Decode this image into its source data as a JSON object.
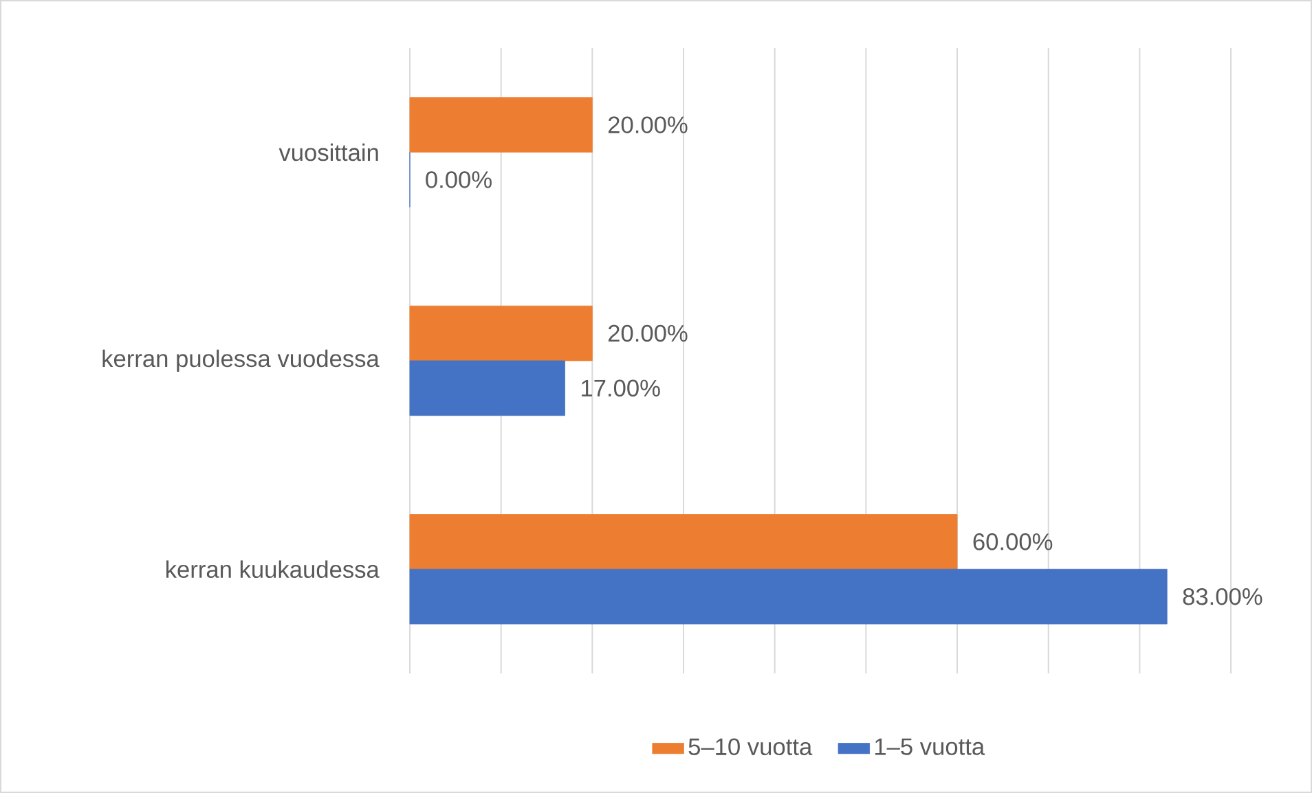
{
  "chart_data": {
    "type": "bar",
    "orientation": "horizontal",
    "categories": [
      "vuosittain",
      "kerran puolessa vuodessa",
      "kerran kuukaudessa"
    ],
    "series": [
      {
        "name": "5–10 vuotta",
        "color": "#ed7d31",
        "values": [
          20,
          20,
          60
        ],
        "value_labels": [
          "20.00%",
          "20.00%",
          "60.00%"
        ]
      },
      {
        "name": "1–5 vuotta",
        "color": "#4472c4",
        "values": [
          0,
          17,
          83
        ],
        "value_labels": [
          "0.00%",
          "17.00%",
          "83.00%"
        ]
      }
    ],
    "xlim": [
      0,
      90
    ],
    "xticks": [
      {
        "value": 0,
        "label": null
      },
      {
        "value": 10,
        "label": null
      },
      {
        "value": 20,
        "label": null
      },
      {
        "value": 30,
        "label": null
      },
      {
        "value": 40,
        "label": null
      },
      {
        "value": 50,
        "label": null
      },
      {
        "value": 60,
        "label": null
      },
      {
        "value": 70,
        "label": null
      },
      {
        "value": 80,
        "label": null
      },
      {
        "value": 90,
        "label": null
      }
    ],
    "grid": "x",
    "legend": "bottom",
    "tick_labels": "y"
  }
}
